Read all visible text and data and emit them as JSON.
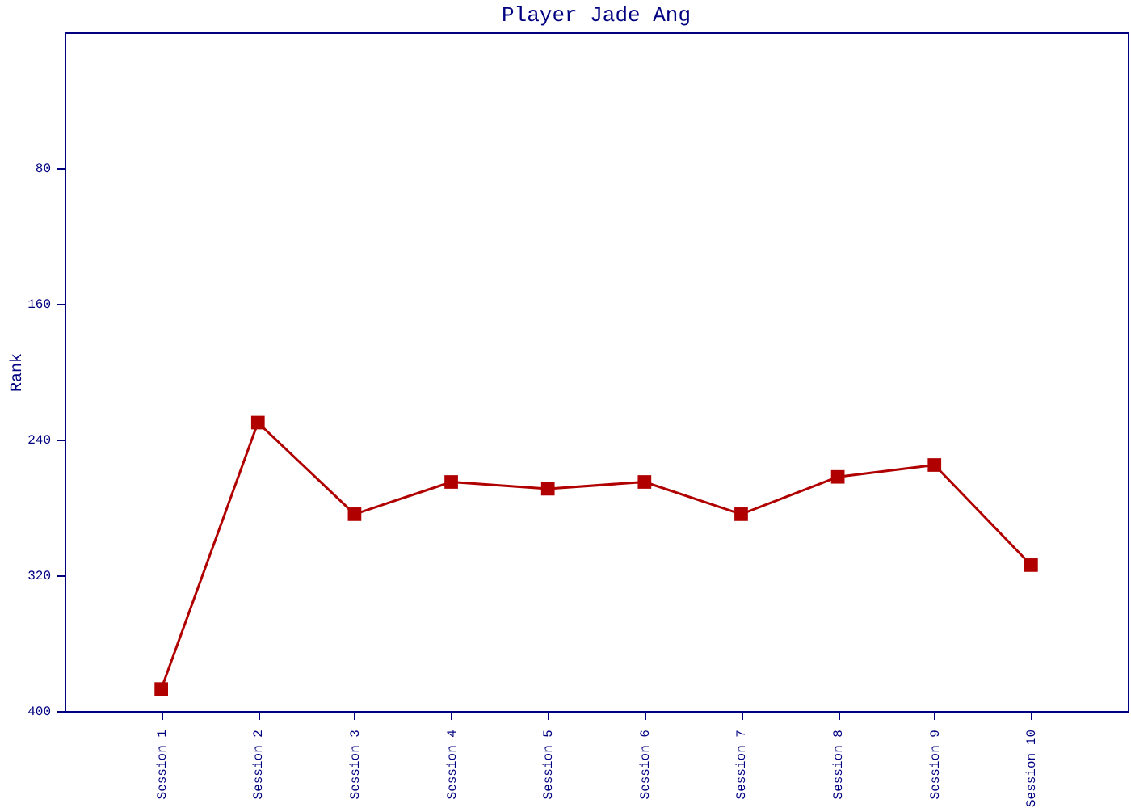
{
  "chart_data": {
    "type": "line",
    "title": "Player Jade Ang",
    "ylabel": "Rank",
    "categories": [
      "Session 1",
      "Session 2",
      "Session 3",
      "Session 4",
      "Session 5",
      "Session 6",
      "Session 7",
      "Session 8",
      "Session 9",
      "Session 10"
    ],
    "series": [
      {
        "color": "#b00000",
        "values": [
          387,
          230,
          284,
          265,
          269,
          265,
          284,
          262,
          255,
          314
        ]
      }
    ],
    "ylim": [
      400,
      0
    ],
    "yticks": [
      80,
      160,
      240,
      320,
      400
    ],
    "grid": false,
    "marker": "square",
    "line_style": "solid"
  }
}
